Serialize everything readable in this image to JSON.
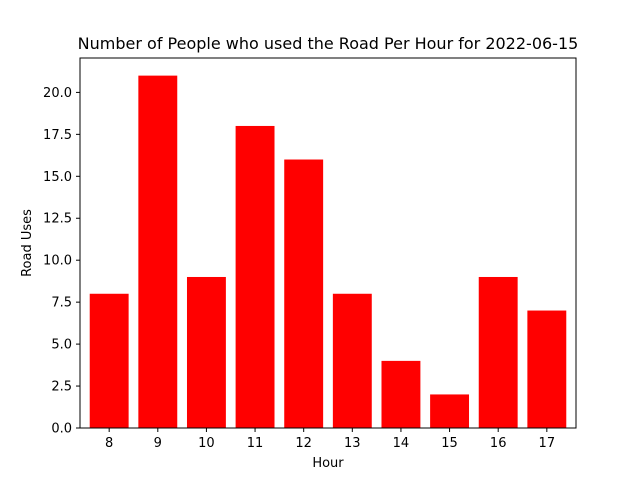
{
  "chart_data": {
    "type": "bar",
    "title": "Number of People who used the Road Per Hour for 2022-06-15",
    "xlabel": "Hour",
    "ylabel": "Road Uses",
    "categories": [
      "8",
      "9",
      "10",
      "11",
      "12",
      "13",
      "14",
      "15",
      "16",
      "17"
    ],
    "values": [
      8,
      21,
      9,
      18,
      16,
      8,
      4,
      2,
      9,
      7
    ],
    "ylim": [
      0,
      22.05
    ],
    "yticks": [
      0,
      2.5,
      5,
      7.5,
      10,
      12.5,
      15,
      17.5,
      20
    ],
    "ytick_labels": [
      "0.0",
      "2.5",
      "5.0",
      "7.5",
      "10.0",
      "12.5",
      "15.0",
      "17.5",
      "20.0"
    ],
    "bar_color": "#ff0000",
    "grid": false,
    "legend": "none"
  }
}
